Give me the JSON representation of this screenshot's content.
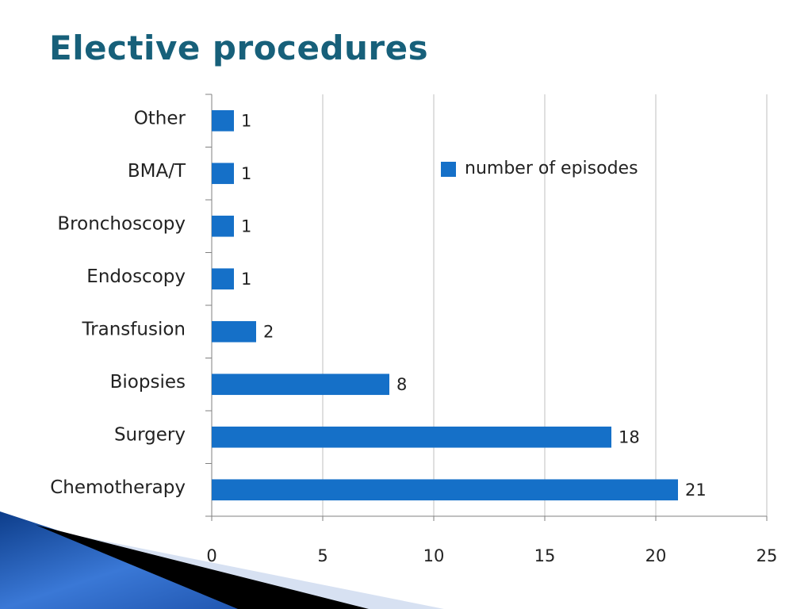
{
  "slide": {
    "title": "Elective procedures"
  },
  "colors": {
    "title": "#17607a",
    "bar": "#1570c8",
    "grid": "#bfbfbf",
    "axis": "#808080",
    "text": "#222222"
  },
  "chart_data": {
    "type": "bar",
    "orientation": "horizontal",
    "categories": [
      "Other",
      "BMA/T",
      "Bronchoscopy",
      "Endoscopy",
      "Transfusion",
      "Biopsies",
      "Surgery",
      "Chemotherapy"
    ],
    "series": [
      {
        "name": "number of episodes",
        "values": [
          1,
          1,
          1,
          1,
          2,
          8,
          18,
          21
        ]
      }
    ],
    "data_labels": [
      "1",
      "1",
      "1",
      "1",
      "2",
      "8",
      "18",
      "21"
    ],
    "xlim": [
      0,
      25
    ],
    "xticks": [
      0,
      5,
      10,
      15,
      20,
      25
    ],
    "grid": true,
    "legend_position": "top-right"
  }
}
